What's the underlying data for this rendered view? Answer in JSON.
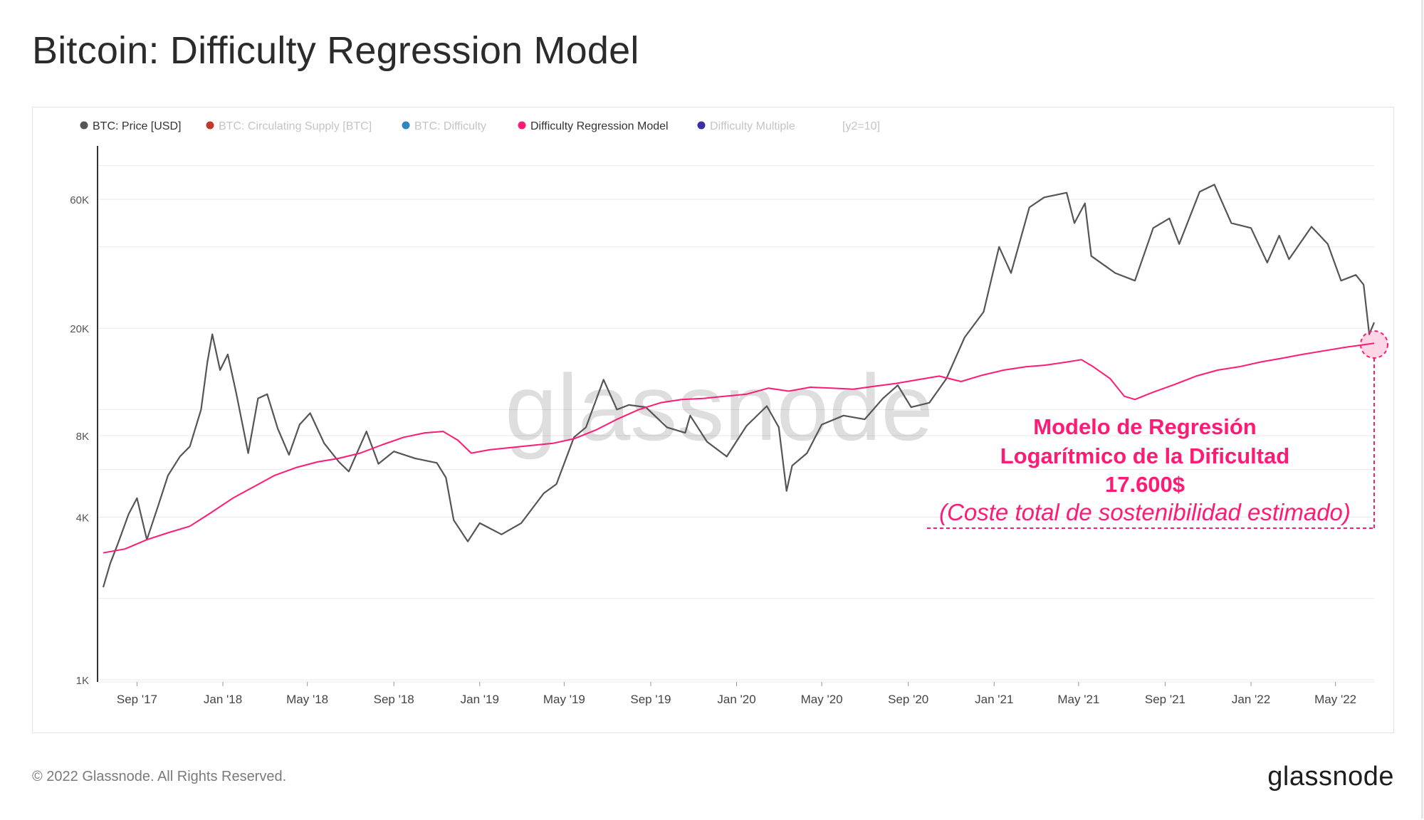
{
  "page": {
    "title": "Bitcoin: Difficulty Regression Model",
    "footer_copyright": "© 2022 Glassnode. All Rights Reserved.",
    "footer_logo": "glassnode",
    "watermark": "glassnode"
  },
  "legend": [
    {
      "label": "BTC: Price [USD]",
      "color": "#555555",
      "active": true
    },
    {
      "label": "BTC: Circulating Supply [BTC]",
      "color": "#c0392b",
      "active": false
    },
    {
      "label": "BTC: Difficulty",
      "color": "#2e86c1",
      "active": false
    },
    {
      "label": "Difficulty Regression Model",
      "color": "#ff1a75",
      "active": true
    },
    {
      "label": "Difficulty Multiple",
      "color": "#3b2fa5",
      "active": false
    },
    {
      "label": "[y2=10]",
      "color": "",
      "active": false
    }
  ],
  "annotation": {
    "line1": "Modelo de Regresión",
    "line2": "Logarítmico de la Dificultad",
    "line3": "17.600$",
    "line4": "(Coste total de sostenibilidad estimado)",
    "color": "#ff1a75"
  },
  "chart_data": {
    "type": "line",
    "title": "Bitcoin: Difficulty Regression Model",
    "y_scale": "log",
    "ylim": [
      1000,
      100000
    ],
    "y_ticks": [
      {
        "value": 1000,
        "label": "1K"
      },
      {
        "value": 4000,
        "label": "4K"
      },
      {
        "value": 8000,
        "label": "8K"
      },
      {
        "value": 20000,
        "label": "20K"
      },
      {
        "value": 60000,
        "label": "60K"
      }
    ],
    "y_gridlines": [
      1000,
      2000,
      4000,
      6000,
      8000,
      10000,
      20000,
      40000,
      60000,
      80000
    ],
    "x_ticks": [
      "Sep '17",
      "Jan '18",
      "May '18",
      "Sep '18",
      "Jan '19",
      "May '19",
      "Sep '19",
      "Jan '20",
      "May '20",
      "Sep '20",
      "Jan '21",
      "May '21",
      "Sep '21",
      "Jan '22",
      "May '22"
    ],
    "x_range": [
      "2017-07-15",
      "2022-06-25"
    ],
    "legend_position": "top-left",
    "grid": true,
    "series": [
      {
        "name": "BTC: Price [USD]",
        "color": "#555555",
        "points": [
          [
            "2017-07-15",
            2200
          ],
          [
            "2017-07-25",
            2700
          ],
          [
            "2017-08-05",
            3200
          ],
          [
            "2017-08-20",
            4100
          ],
          [
            "2017-09-01",
            4700
          ],
          [
            "2017-09-15",
            3300
          ],
          [
            "2017-10-01",
            4400
          ],
          [
            "2017-10-15",
            5700
          ],
          [
            "2017-11-01",
            6700
          ],
          [
            "2017-11-15",
            7300
          ],
          [
            "2017-12-01",
            10000
          ],
          [
            "2017-12-10",
            15000
          ],
          [
            "2017-12-17",
            19000
          ],
          [
            "2017-12-28",
            14000
          ],
          [
            "2018-01-08",
            16000
          ],
          [
            "2018-01-20",
            11500
          ],
          [
            "2018-02-06",
            6900
          ],
          [
            "2018-02-20",
            11000
          ],
          [
            "2018-03-05",
            11400
          ],
          [
            "2018-03-20",
            8500
          ],
          [
            "2018-04-05",
            6800
          ],
          [
            "2018-04-20",
            8800
          ],
          [
            "2018-05-05",
            9700
          ],
          [
            "2018-05-25",
            7500
          ],
          [
            "2018-06-15",
            6400
          ],
          [
            "2018-06-29",
            5900
          ],
          [
            "2018-07-24",
            8300
          ],
          [
            "2018-08-10",
            6300
          ],
          [
            "2018-09-01",
            7000
          ],
          [
            "2018-10-01",
            6600
          ],
          [
            "2018-11-01",
            6350
          ],
          [
            "2018-11-14",
            5600
          ],
          [
            "2018-11-25",
            3900
          ],
          [
            "2018-12-15",
            3250
          ],
          [
            "2019-01-01",
            3800
          ],
          [
            "2019-02-01",
            3450
          ],
          [
            "2019-03-01",
            3800
          ],
          [
            "2019-04-02",
            4900
          ],
          [
            "2019-04-20",
            5300
          ],
          [
            "2019-05-15",
            7900
          ],
          [
            "2019-06-01",
            8600
          ],
          [
            "2019-06-26",
            12900
          ],
          [
            "2019-07-15",
            10000
          ],
          [
            "2019-08-01",
            10400
          ],
          [
            "2019-08-25",
            10200
          ],
          [
            "2019-09-24",
            8600
          ],
          [
            "2019-10-20",
            8200
          ],
          [
            "2019-10-27",
            9500
          ],
          [
            "2019-11-20",
            7600
          ],
          [
            "2019-12-18",
            6700
          ],
          [
            "2020-01-15",
            8700
          ],
          [
            "2020-02-13",
            10300
          ],
          [
            "2020-03-01",
            8600
          ],
          [
            "2020-03-12",
            5000
          ],
          [
            "2020-03-20",
            6200
          ],
          [
            "2020-04-10",
            6900
          ],
          [
            "2020-05-01",
            8800
          ],
          [
            "2020-06-01",
            9500
          ],
          [
            "2020-07-01",
            9200
          ],
          [
            "2020-07-27",
            11000
          ],
          [
            "2020-08-17",
            12300
          ],
          [
            "2020-09-05",
            10200
          ],
          [
            "2020-10-01",
            10600
          ],
          [
            "2020-10-25",
            13000
          ],
          [
            "2020-11-20",
            18500
          ],
          [
            "2020-12-17",
            23000
          ],
          [
            "2021-01-08",
            40000
          ],
          [
            "2021-01-25",
            32000
          ],
          [
            "2021-02-20",
            56000
          ],
          [
            "2021-03-13",
            61000
          ],
          [
            "2021-04-14",
            63500
          ],
          [
            "2021-04-25",
            49000
          ],
          [
            "2021-05-10",
            58000
          ],
          [
            "2021-05-19",
            37000
          ],
          [
            "2021-06-22",
            32000
          ],
          [
            "2021-07-20",
            30000
          ],
          [
            "2021-08-15",
            47000
          ],
          [
            "2021-09-07",
            51000
          ],
          [
            "2021-09-21",
            41000
          ],
          [
            "2021-10-20",
            64000
          ],
          [
            "2021-11-10",
            68000
          ],
          [
            "2021-12-04",
            49000
          ],
          [
            "2022-01-01",
            47000
          ],
          [
            "2022-01-24",
            35000
          ],
          [
            "2022-02-10",
            44000
          ],
          [
            "2022-02-24",
            36000
          ],
          [
            "2022-03-28",
            47500
          ],
          [
            "2022-04-20",
            41000
          ],
          [
            "2022-05-09",
            30000
          ],
          [
            "2022-05-30",
            31500
          ],
          [
            "2022-06-10",
            29000
          ],
          [
            "2022-06-18",
            19000
          ],
          [
            "2022-06-25",
            21000
          ]
        ]
      },
      {
        "name": "Difficulty Regression Model",
        "color": "#ff1a75",
        "points": [
          [
            "2017-07-15",
            2950
          ],
          [
            "2017-08-15",
            3050
          ],
          [
            "2017-09-15",
            3300
          ],
          [
            "2017-10-15",
            3500
          ],
          [
            "2017-11-15",
            3700
          ],
          [
            "2017-12-15",
            4150
          ],
          [
            "2018-01-15",
            4700
          ],
          [
            "2018-02-15",
            5200
          ],
          [
            "2018-03-15",
            5700
          ],
          [
            "2018-04-15",
            6100
          ],
          [
            "2018-05-15",
            6400
          ],
          [
            "2018-06-15",
            6600
          ],
          [
            "2018-07-15",
            6900
          ],
          [
            "2018-08-15",
            7400
          ],
          [
            "2018-09-15",
            7900
          ],
          [
            "2018-10-15",
            8200
          ],
          [
            "2018-11-10",
            8300
          ],
          [
            "2018-12-01",
            7700
          ],
          [
            "2018-12-20",
            6900
          ],
          [
            "2019-01-15",
            7100
          ],
          [
            "2019-03-01",
            7300
          ],
          [
            "2019-04-15",
            7500
          ],
          [
            "2019-05-15",
            7800
          ],
          [
            "2019-06-15",
            8400
          ],
          [
            "2019-07-15",
            9200
          ],
          [
            "2019-08-15",
            10000
          ],
          [
            "2019-09-15",
            10600
          ],
          [
            "2019-10-15",
            10900
          ],
          [
            "2019-11-15",
            11000
          ],
          [
            "2019-12-15",
            11200
          ],
          [
            "2020-01-15",
            11400
          ],
          [
            "2020-02-15",
            12000
          ],
          [
            "2020-03-15",
            11700
          ],
          [
            "2020-04-15",
            12100
          ],
          [
            "2020-05-15",
            12000
          ],
          [
            "2020-06-15",
            11900
          ],
          [
            "2020-07-15",
            12200
          ],
          [
            "2020-08-15",
            12500
          ],
          [
            "2020-09-15",
            12900
          ],
          [
            "2020-10-15",
            13300
          ],
          [
            "2020-11-15",
            12700
          ],
          [
            "2020-12-15",
            13400
          ],
          [
            "2021-01-15",
            14000
          ],
          [
            "2021-02-15",
            14400
          ],
          [
            "2021-03-15",
            14600
          ],
          [
            "2021-04-15",
            15000
          ],
          [
            "2021-05-05",
            15300
          ],
          [
            "2021-05-20",
            14500
          ],
          [
            "2021-06-15",
            13000
          ],
          [
            "2021-07-05",
            11200
          ],
          [
            "2021-07-20",
            10900
          ],
          [
            "2021-08-15",
            11600
          ],
          [
            "2021-09-15",
            12400
          ],
          [
            "2021-10-15",
            13300
          ],
          [
            "2021-11-15",
            14000
          ],
          [
            "2021-12-15",
            14400
          ],
          [
            "2022-01-15",
            15000
          ],
          [
            "2022-02-15",
            15500
          ],
          [
            "2022-03-15",
            16000
          ],
          [
            "2022-04-15",
            16500
          ],
          [
            "2022-05-15",
            17000
          ],
          [
            "2022-06-25",
            17600
          ]
        ]
      }
    ]
  }
}
